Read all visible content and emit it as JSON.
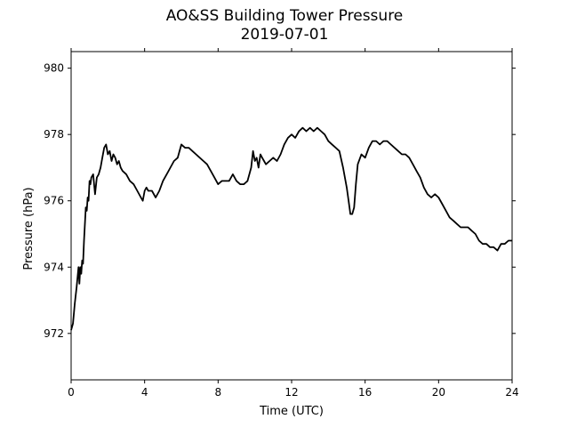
{
  "chart_data": {
    "type": "line",
    "title": "AO&SS Building Tower Pressure",
    "subtitle": "2019-07-01",
    "xlabel": "Time (UTC)",
    "ylabel": "Pressure (hPa)",
    "xlim": [
      0,
      24
    ],
    "ylim": [
      970.6,
      980.5
    ],
    "xticks": [
      0,
      4,
      8,
      12,
      16,
      20,
      24
    ],
    "yticks": [
      972,
      974,
      976,
      978,
      980
    ],
    "grid": false,
    "line_color": "#000000",
    "series": [
      {
        "x": [
          0.0,
          0.1,
          0.2,
          0.3,
          0.4,
          0.45,
          0.5,
          0.55,
          0.6,
          0.65,
          0.7,
          0.75,
          0.8,
          0.85,
          0.9,
          0.95,
          1.0,
          1.05,
          1.1,
          1.2,
          1.3,
          1.4,
          1.5,
          1.6,
          1.7,
          1.8,
          1.9,
          2.0,
          2.1,
          2.2,
          2.3,
          2.4,
          2.5,
          2.6,
          2.7,
          2.8,
          3.0,
          3.2,
          3.4,
          3.6,
          3.8,
          3.9,
          4.0,
          4.1,
          4.2,
          4.4,
          4.6,
          4.8,
          5.0,
          5.2,
          5.4,
          5.6,
          5.8,
          6.0,
          6.2,
          6.4,
          6.6,
          6.8,
          7.0,
          7.2,
          7.4,
          7.6,
          7.8,
          8.0,
          8.2,
          8.4,
          8.6,
          8.8,
          9.0,
          9.2,
          9.4,
          9.6,
          9.8,
          9.9,
          10.0,
          10.1,
          10.2,
          10.3,
          10.4,
          10.5,
          10.6,
          10.8,
          11.0,
          11.2,
          11.4,
          11.6,
          11.8,
          12.0,
          12.2,
          12.4,
          12.6,
          12.8,
          13.0,
          13.2,
          13.4,
          13.6,
          13.8,
          14.0,
          14.2,
          14.4,
          14.6,
          14.8,
          15.0,
          15.1,
          15.2,
          15.3,
          15.4,
          15.5,
          15.6,
          15.8,
          16.0,
          16.2,
          16.4,
          16.6,
          16.8,
          17.0,
          17.2,
          17.4,
          17.6,
          17.8,
          18.0,
          18.2,
          18.4,
          18.6,
          18.8,
          19.0,
          19.2,
          19.4,
          19.6,
          19.8,
          20.0,
          20.2,
          20.4,
          20.6,
          20.8,
          21.0,
          21.2,
          21.4,
          21.6,
          21.8,
          22.0,
          22.2,
          22.4,
          22.6,
          22.8,
          23.0,
          23.2,
          23.4,
          23.6,
          23.8,
          24.0
        ],
        "values": [
          972.1,
          972.3,
          972.9,
          973.4,
          974.0,
          973.5,
          974.0,
          973.8,
          974.2,
          974.1,
          974.8,
          975.3,
          975.8,
          975.7,
          976.1,
          976.0,
          976.6,
          976.5,
          976.7,
          976.8,
          976.2,
          976.7,
          976.8,
          977.0,
          977.3,
          977.6,
          977.7,
          977.4,
          977.5,
          977.2,
          977.4,
          977.3,
          977.1,
          977.2,
          977.0,
          976.9,
          976.8,
          976.6,
          976.5,
          976.3,
          976.1,
          976.0,
          976.3,
          976.4,
          976.3,
          976.3,
          976.1,
          976.3,
          976.6,
          976.8,
          977.0,
          977.2,
          977.3,
          977.7,
          977.6,
          977.6,
          977.5,
          977.4,
          977.3,
          977.2,
          977.1,
          976.9,
          976.7,
          976.5,
          976.6,
          976.6,
          976.6,
          976.8,
          976.6,
          976.5,
          976.5,
          976.6,
          977.0,
          977.5,
          977.2,
          977.3,
          977.0,
          977.4,
          977.3,
          977.2,
          977.1,
          977.2,
          977.3,
          977.2,
          977.4,
          977.7,
          977.9,
          978.0,
          977.9,
          978.1,
          978.2,
          978.1,
          978.2,
          978.1,
          978.2,
          978.1,
          978.0,
          977.8,
          977.7,
          977.6,
          977.5,
          977.0,
          976.4,
          976.0,
          975.6,
          975.6,
          975.8,
          976.5,
          977.1,
          977.4,
          977.3,
          977.6,
          977.8,
          977.8,
          977.7,
          977.8,
          977.8,
          977.7,
          977.6,
          977.5,
          977.4,
          977.4,
          977.3,
          977.1,
          976.9,
          976.7,
          976.4,
          976.2,
          976.1,
          976.2,
          976.1,
          975.9,
          975.7,
          975.5,
          975.4,
          975.3,
          975.2,
          975.2,
          975.2,
          975.1,
          975.0,
          974.8,
          974.7,
          974.7,
          974.6,
          974.6,
          974.5,
          974.7,
          974.7,
          974.8,
          974.8
        ]
      }
    ]
  }
}
